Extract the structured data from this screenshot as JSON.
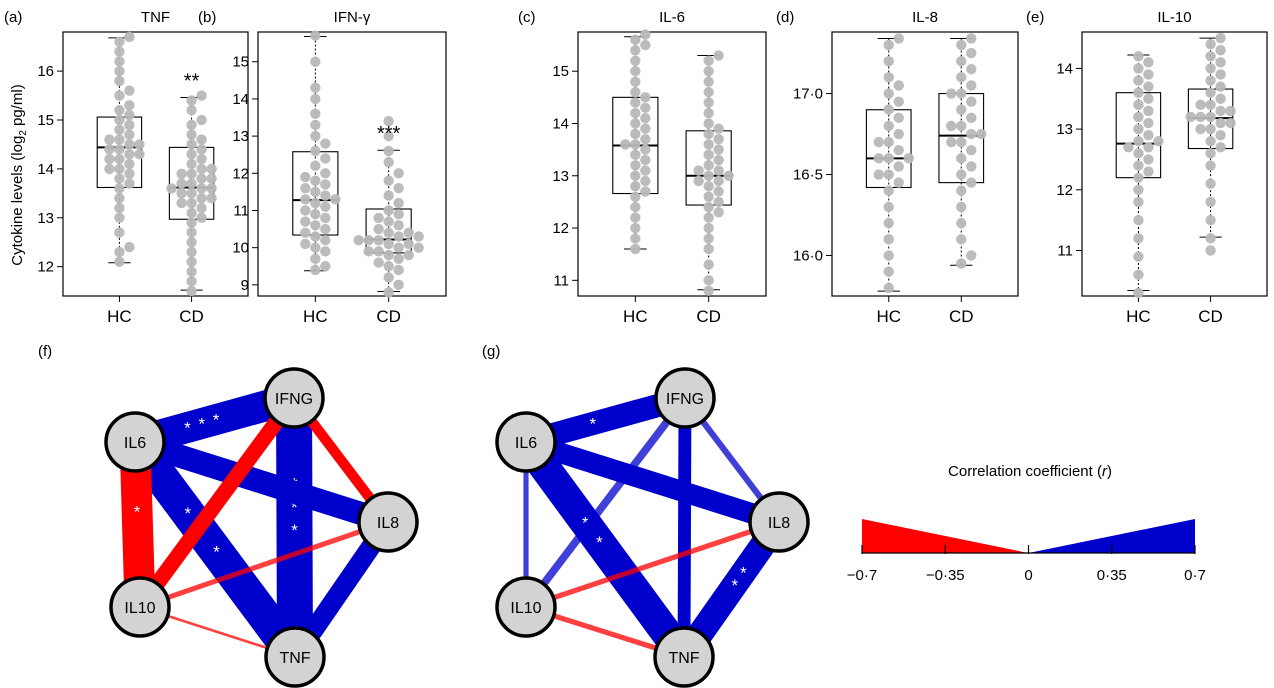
{
  "y_axis_label": "Cytokine levels (log",
  "y_axis_label_sub": "2",
  "y_axis_label_tail": " pg/ml)",
  "chart_data": [
    {
      "type": "box",
      "panel": "(a)",
      "title": "TNF",
      "categories": [
        "HC",
        "CD"
      ],
      "ylim": [
        11.4,
        16.8
      ],
      "yticks": [
        12,
        13,
        14,
        15,
        16
      ],
      "yticklabels": [
        "12",
        "13",
        "14",
        "15",
        "16"
      ],
      "significance": [
        "",
        "**"
      ],
      "boxes": [
        {
          "min": 12.08,
          "q1": 13.62,
          "median": 14.44,
          "q3": 15.06,
          "max": 16.68
        },
        {
          "min": 11.52,
          "q1": 12.97,
          "median": 13.62,
          "q3": 14.44,
          "max": 15.46
        }
      ],
      "points": [
        [
          12.1,
          12.3,
          12.4,
          12.7,
          13.0,
          13.2,
          13.4,
          13.6,
          13.7,
          13.8,
          13.9,
          14.0,
          14.0,
          14.1,
          14.2,
          14.2,
          14.3,
          14.3,
          14.4,
          14.4,
          14.5,
          14.5,
          14.6,
          14.6,
          14.7,
          14.8,
          14.9,
          15.0,
          15.1,
          15.2,
          15.3,
          15.5,
          15.6,
          15.8,
          16.0,
          16.2,
          16.4,
          16.6,
          16.7
        ],
        [
          11.5,
          11.7,
          11.9,
          12.1,
          12.3,
          12.5,
          12.7,
          12.9,
          13.0,
          13.1,
          13.2,
          13.3,
          13.3,
          13.4,
          13.4,
          13.5,
          13.5,
          13.6,
          13.6,
          13.6,
          13.7,
          13.7,
          13.8,
          13.8,
          13.9,
          13.9,
          14.0,
          14.0,
          14.1,
          14.2,
          14.3,
          14.4,
          14.5,
          14.6,
          14.7,
          14.9,
          15.0,
          15.2,
          15.4,
          15.5
        ]
      ]
    },
    {
      "type": "box",
      "panel": "(b)",
      "title": "IFN-γ",
      "categories": [
        "HC",
        "CD"
      ],
      "ylim": [
        8.7,
        15.8
      ],
      "yticks": [
        9,
        10,
        11,
        12,
        13,
        14,
        15
      ],
      "yticklabels": [
        "9",
        "10",
        "11",
        "12",
        "13",
        "14",
        "15"
      ],
      "significance": [
        "",
        "***"
      ],
      "boxes": [
        {
          "min": 9.38,
          "q1": 10.34,
          "median": 11.28,
          "q3": 12.58,
          "max": 15.68
        },
        {
          "min": 8.82,
          "q1": 9.86,
          "median": 10.22,
          "q3": 11.04,
          "max": 12.62
        }
      ],
      "points": [
        [
          9.4,
          9.5,
          9.7,
          9.9,
          10.0,
          10.1,
          10.2,
          10.3,
          10.4,
          10.5,
          10.6,
          10.7,
          10.8,
          10.9,
          11.0,
          11.1,
          11.2,
          11.3,
          11.3,
          11.4,
          11.5,
          11.6,
          11.7,
          11.8,
          11.9,
          12.0,
          12.2,
          12.4,
          12.6,
          12.8,
          13.0,
          13.3,
          13.6,
          14.0,
          14.3,
          15.0,
          15.7
        ],
        [
          8.8,
          9.0,
          9.2,
          9.4,
          9.5,
          9.6,
          9.7,
          9.8,
          9.8,
          9.9,
          9.9,
          10.0,
          10.0,
          10.1,
          10.1,
          10.2,
          10.2,
          10.2,
          10.3,
          10.3,
          10.4,
          10.4,
          10.5,
          10.6,
          10.7,
          10.8,
          10.9,
          11.0,
          11.2,
          11.4,
          11.6,
          11.8,
          12.0,
          12.3,
          12.6,
          13.0,
          13.4
        ]
      ]
    },
    {
      "type": "box",
      "panel": "(c)",
      "title": "IL-6",
      "categories": [
        "HC",
        "CD"
      ],
      "ylim": [
        10.7,
        15.75
      ],
      "yticks": [
        11,
        12,
        13,
        14,
        15
      ],
      "yticklabels": [
        "11",
        "12",
        "13",
        "14",
        "15"
      ],
      "significance": [
        "",
        ""
      ],
      "boxes": [
        {
          "min": 11.6,
          "q1": 12.66,
          "median": 13.58,
          "q3": 14.5,
          "max": 15.66
        },
        {
          "min": 10.82,
          "q1": 12.44,
          "median": 13.0,
          "q3": 13.86,
          "max": 15.3
        }
      ],
      "points": [
        [
          11.6,
          11.8,
          12.0,
          12.2,
          12.4,
          12.6,
          12.7,
          12.8,
          12.9,
          13.0,
          13.1,
          13.2,
          13.3,
          13.4,
          13.5,
          13.6,
          13.6,
          13.7,
          13.8,
          13.9,
          14.0,
          14.1,
          14.2,
          14.3,
          14.4,
          14.5,
          14.6,
          14.8,
          15.0,
          15.2,
          15.4,
          15.5,
          15.6,
          15.7
        ],
        [
          10.8,
          11.0,
          11.3,
          11.6,
          11.8,
          12.0,
          12.2,
          12.3,
          12.4,
          12.5,
          12.6,
          12.7,
          12.8,
          12.9,
          12.9,
          13.0,
          13.0,
          13.1,
          13.1,
          13.2,
          13.3,
          13.4,
          13.5,
          13.6,
          13.7,
          13.8,
          13.9,
          14.0,
          14.2,
          14.4,
          14.6,
          14.8,
          15.0,
          15.2,
          15.3
        ]
      ]
    },
    {
      "type": "box",
      "panel": "(d)",
      "title": "IL-8",
      "categories": [
        "HC",
        "CD"
      ],
      "ylim": [
        15.75,
        17.38
      ],
      "yticks": [
        16.0,
        16.5,
        17.0
      ],
      "yticklabels": [
        "16·0",
        "16·5",
        "17·0"
      ],
      "significance": [
        "",
        ""
      ],
      "boxes": [
        {
          "min": 15.78,
          "q1": 16.42,
          "median": 16.6,
          "q3": 16.9,
          "max": 17.34
        },
        {
          "min": 15.94,
          "q1": 16.45,
          "median": 16.74,
          "q3": 17.0,
          "max": 17.34
        }
      ],
      "points": [
        [
          15.8,
          15.9,
          16.0,
          16.1,
          16.2,
          16.3,
          16.4,
          16.45,
          16.5,
          16.5,
          16.55,
          16.6,
          16.6,
          16.6,
          16.65,
          16.7,
          16.7,
          16.75,
          16.8,
          16.85,
          16.9,
          16.95,
          17.0,
          17.05,
          17.1,
          17.2,
          17.3,
          17.34
        ],
        [
          15.95,
          16.0,
          16.1,
          16.2,
          16.3,
          16.4,
          16.45,
          16.5,
          16.55,
          16.6,
          16.65,
          16.7,
          16.7,
          16.75,
          16.75,
          16.8,
          16.8,
          16.85,
          16.9,
          16.95,
          17.0,
          17.0,
          17.05,
          17.1,
          17.15,
          17.2,
          17.25,
          17.3,
          17.34
        ]
      ]
    },
    {
      "type": "box",
      "panel": "(e)",
      "title": "IL-10",
      "categories": [
        "HC",
        "CD"
      ],
      "ylim": [
        10.25,
        14.6
      ],
      "yticks": [
        11,
        12,
        13,
        14
      ],
      "yticklabels": [
        "11",
        "12",
        "13",
        "14"
      ],
      "significance": [
        "",
        ""
      ],
      "boxes": [
        {
          "min": 10.34,
          "q1": 12.2,
          "median": 12.76,
          "q3": 13.6,
          "max": 14.22
        },
        {
          "min": 11.22,
          "q1": 12.68,
          "median": 13.18,
          "q3": 13.66,
          "max": 14.5
        }
      ],
      "points": [
        [
          10.3,
          10.6,
          10.9,
          11.2,
          11.5,
          11.8,
          12.0,
          12.2,
          12.3,
          12.4,
          12.5,
          12.6,
          12.7,
          12.7,
          12.8,
          12.8,
          12.9,
          13.0,
          13.1,
          13.2,
          13.3,
          13.4,
          13.5,
          13.6,
          13.7,
          13.8,
          13.9,
          14.0,
          14.1,
          14.2
        ],
        [
          11.0,
          11.2,
          11.5,
          11.8,
          12.1,
          12.4,
          12.6,
          12.7,
          12.8,
          12.9,
          13.0,
          13.0,
          13.1,
          13.1,
          13.2,
          13.2,
          13.2,
          13.3,
          13.3,
          13.4,
          13.4,
          13.5,
          13.6,
          13.7,
          13.8,
          13.9,
          14.0,
          14.1,
          14.2,
          14.3,
          14.4,
          14.5
        ]
      ]
    },
    {
      "type": "network",
      "panel": "(f)",
      "nodes": [
        "IFNG",
        "IL6",
        "IL8",
        "IL10",
        "TNF"
      ],
      "edges": [
        {
          "source": "IL6",
          "target": "IFNG",
          "r": 0.6,
          "stars": "***"
        },
        {
          "source": "IFNG",
          "target": "TNF",
          "r": 0.7,
          "stars": "***"
        },
        {
          "source": "IL6",
          "target": "TNF",
          "r": 0.66,
          "stars": "***"
        },
        {
          "source": "IL6",
          "target": "IL10",
          "r": -0.6,
          "stars": "*"
        },
        {
          "source": "IL6",
          "target": "IL8",
          "r": 0.45,
          "stars": ""
        },
        {
          "source": "IL8",
          "target": "TNF",
          "r": 0.38,
          "stars": ""
        },
        {
          "source": "IFNG",
          "target": "IL10",
          "r": -0.3,
          "stars": ""
        },
        {
          "source": "IFNG",
          "target": "IL8",
          "r": -0.2,
          "stars": ""
        },
        {
          "source": "IL8",
          "target": "IL10",
          "r": -0.1,
          "stars": ""
        },
        {
          "source": "IL10",
          "target": "TNF",
          "r": -0.05,
          "stars": ""
        }
      ]
    },
    {
      "type": "network",
      "panel": "(g)",
      "nodes": [
        "IFNG",
        "IL6",
        "IL8",
        "IL10",
        "TNF"
      ],
      "edges": [
        {
          "source": "IL6",
          "target": "IFNG",
          "r": 0.45,
          "stars": "*"
        },
        {
          "source": "IL6",
          "target": "TNF",
          "r": 0.6,
          "stars": "**"
        },
        {
          "source": "IL8",
          "target": "TNF",
          "r": 0.5,
          "stars": "**"
        },
        {
          "source": "IL6",
          "target": "IL8",
          "r": 0.4,
          "stars": ""
        },
        {
          "source": "IFNG",
          "target": "TNF",
          "r": 0.25,
          "stars": ""
        },
        {
          "source": "IFNG",
          "target": "IL10",
          "r": 0.15,
          "stars": ""
        },
        {
          "source": "IFNG",
          "target": "IL8",
          "r": 0.12,
          "stars": ""
        },
        {
          "source": "IL6",
          "target": "IL10",
          "r": 0.1,
          "stars": ""
        },
        {
          "source": "IL8",
          "target": "IL10",
          "r": -0.1,
          "stars": ""
        },
        {
          "source": "IL10",
          "target": "TNF",
          "r": -0.1,
          "stars": ""
        }
      ]
    }
  ],
  "legend": {
    "title": "Correlation coefficient (",
    "title_var": "r",
    "title_tail": ")",
    "ticks": [
      -0.7,
      -0.35,
      0,
      0.35,
      0.7
    ],
    "ticklabels": [
      "−0·7",
      "−0·35",
      "0",
      "0·35",
      "0·7"
    ],
    "negative_color": "#ff0000",
    "positive_color": "#0000cc"
  },
  "colors": {
    "points": "#b8b8b8",
    "node_fill": "#d3d3d3",
    "box": "#000000"
  }
}
